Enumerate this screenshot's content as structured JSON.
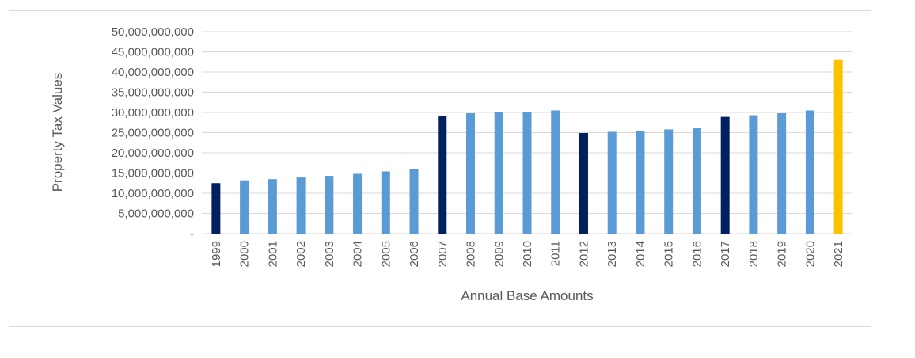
{
  "chart_data": {
    "type": "bar",
    "title": "",
    "xlabel": "Annual Base Amounts",
    "ylabel": "Property Tax Values",
    "ylim": [
      0,
      50000000000
    ],
    "y_ticks": [
      0,
      5000000000,
      10000000000,
      15000000000,
      20000000000,
      25000000000,
      30000000000,
      35000000000,
      40000000000,
      45000000000,
      50000000000
    ],
    "y_tick_labels": [
      "-",
      "5,000,000,000",
      "10,000,000,000",
      "15,000,000,000",
      "20,000,000,000",
      "25,000,000,000",
      "30,000,000,000",
      "35,000,000,000",
      "40,000,000,000",
      "45,000,000,000",
      "50,000,000,000"
    ],
    "grid": true,
    "legend": "none",
    "categories": [
      "1999",
      "2000",
      "2001",
      "2002",
      "2003",
      "2004",
      "2005",
      "2006",
      "2007",
      "2008",
      "2009",
      "2010",
      "2011",
      "2012",
      "2013",
      "2014",
      "2015",
      "2016",
      "2017",
      "2018",
      "2019",
      "2020",
      "2021"
    ],
    "values": [
      12500000000,
      13200000000,
      13500000000,
      13900000000,
      14300000000,
      14800000000,
      15400000000,
      16000000000,
      29100000000,
      29800000000,
      30000000000,
      30200000000,
      30500000000,
      24900000000,
      25200000000,
      25500000000,
      25800000000,
      26200000000,
      28900000000,
      29300000000,
      29800000000,
      30500000000,
      43000000000
    ],
    "colors": {
      "reassessment": "#002060",
      "regular": "#5b9bd5",
      "current": "#ffc000",
      "gridline": "#d9d9d9",
      "text": "#595959"
    },
    "bar_color_keys": [
      "reassessment",
      "regular",
      "regular",
      "regular",
      "regular",
      "regular",
      "regular",
      "regular",
      "reassessment",
      "regular",
      "regular",
      "regular",
      "regular",
      "reassessment",
      "regular",
      "regular",
      "regular",
      "regular",
      "reassessment",
      "regular",
      "regular",
      "regular",
      "current"
    ]
  }
}
